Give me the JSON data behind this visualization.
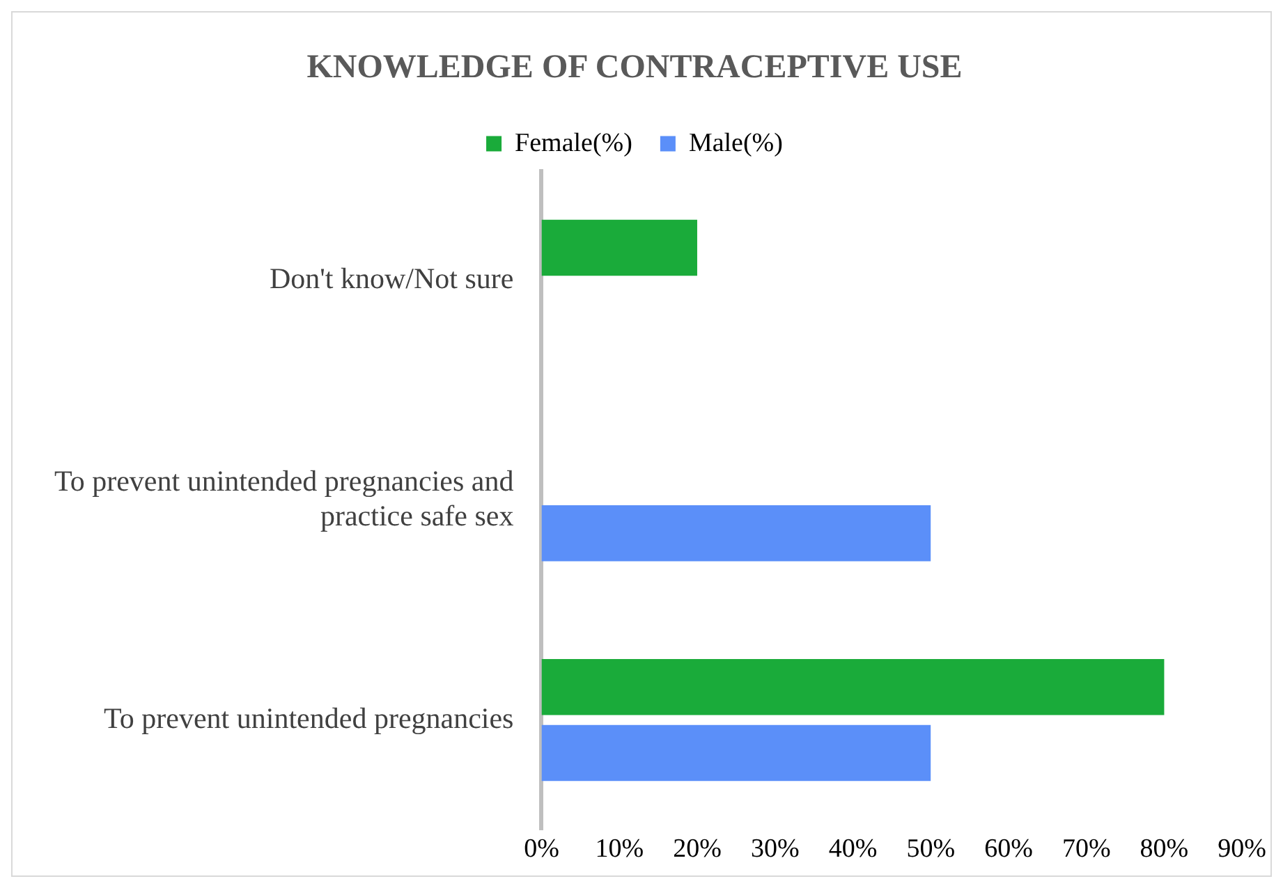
{
  "chart_data": {
    "type": "bar",
    "orientation": "horizontal",
    "title": "KNOWLEDGE OF CONTRACEPTIVE USE",
    "categories": [
      "Don't know/Not sure",
      "To prevent unintended pregnancies and practice safe sex",
      "To prevent unintended pregnancies"
    ],
    "series": [
      {
        "name": "Female(%)",
        "color": "#1aab3a",
        "values": [
          20,
          null,
          80
        ]
      },
      {
        "name": "Male(%)",
        "color": "#5b8ff9",
        "values": [
          null,
          50,
          50
        ]
      }
    ],
    "xlim": [
      0,
      90
    ],
    "xticks": [
      {
        "value": 0,
        "label": "0%"
      },
      {
        "value": 10,
        "label": "10%"
      },
      {
        "value": 20,
        "label": "20%"
      },
      {
        "value": 30,
        "label": "30%"
      },
      {
        "value": 40,
        "label": "40%"
      },
      {
        "value": 50,
        "label": "50%"
      },
      {
        "value": 60,
        "label": "60%"
      },
      {
        "value": 70,
        "label": "70%"
      },
      {
        "value": 80,
        "label": "80%"
      },
      {
        "value": 90,
        "label": "90%"
      }
    ],
    "grid": false,
    "legend": "top"
  }
}
